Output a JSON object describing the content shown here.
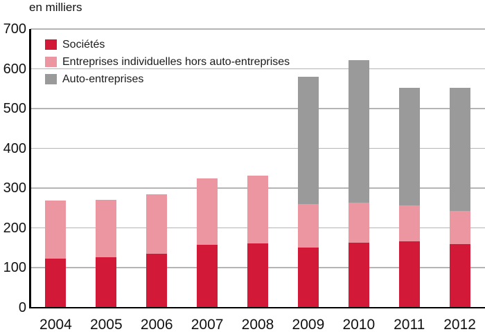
{
  "chart": {
    "title": "en milliers",
    "colors": {
      "axis": "#000000",
      "gridline": "#b4b4b4",
      "text": "#111111",
      "background": "#ffffff"
    }
  },
  "chart_data": {
    "type": "bar",
    "stacked": true,
    "title": "en milliers",
    "categories": [
      "2004",
      "2005",
      "2006",
      "2007",
      "2008",
      "2009",
      "2010",
      "2011",
      "2012"
    ],
    "series": [
      {
        "name": "Sociétés",
        "color": "#d21937",
        "values": [
          122,
          126,
          134,
          158,
          161,
          151,
          162,
          166,
          159
        ]
      },
      {
        "name": "Entreprises individuelles hors auto-entreprises",
        "color": "#eb96a0",
        "values": [
          147,
          144,
          150,
          167,
          170,
          109,
          101,
          90,
          83
        ]
      },
      {
        "name": "Auto-entreprises",
        "color": "#9a9a9a",
        "values": [
          0,
          0,
          0,
          0,
          0,
          320,
          359,
          296,
          310
        ]
      }
    ],
    "totals": [
      269,
      270,
      284,
      325,
      331,
      580,
      622,
      552,
      552
    ],
    "xlabel": "",
    "ylabel": "en milliers",
    "ylim": [
      0,
      700
    ],
    "yticks": [
      0,
      100,
      200,
      300,
      400,
      500,
      600,
      700
    ],
    "grid": true,
    "legend_position": "top-left"
  }
}
